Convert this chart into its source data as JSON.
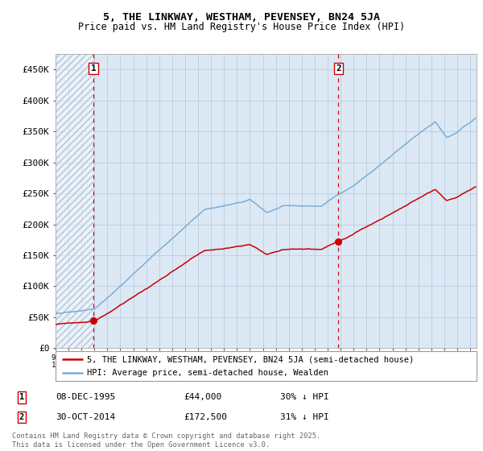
{
  "title_line1": "5, THE LINKWAY, WESTHAM, PEVENSEY, BN24 5JA",
  "title_line2": "Price paid vs. HM Land Registry's House Price Index (HPI)",
  "legend_red": "5, THE LINKWAY, WESTHAM, PEVENSEY, BN24 5JA (semi-detached house)",
  "legend_blue": "HPI: Average price, semi-detached house, Wealden",
  "ann1_date": "08-DEC-1995",
  "ann1_price": "£44,000",
  "ann1_hpi": "30% ↓ HPI",
  "ann2_date": "30-OCT-2014",
  "ann2_price": "£172,500",
  "ann2_hpi": "31% ↓ HPI",
  "footer": "Contains HM Land Registry data © Crown copyright and database right 2025.\nThis data is licensed under the Open Government Licence v3.0.",
  "xmin": 1993.0,
  "xmax": 2025.5,
  "ymin": 0,
  "ymax": 475000,
  "sale1_x": 1995.92,
  "sale1_y": 44000,
  "sale2_x": 2014.83,
  "sale2_y": 172500,
  "red_color": "#cc0000",
  "blue_color": "#7aadd4",
  "bg_color": "#dce9f5",
  "hatch_color": "#b0c4d8",
  "grid_color": "#b8cce0",
  "vline_color": "#dd0000",
  "box_edge_color": "#cc0000",
  "yticks": [
    0,
    50000,
    100000,
    150000,
    200000,
    250000,
    300000,
    350000,
    400000,
    450000
  ],
  "ytick_labels": [
    "£0",
    "£50K",
    "£100K",
    "£150K",
    "£200K",
    "£250K",
    "£300K",
    "£350K",
    "£400K",
    "£450K"
  ]
}
